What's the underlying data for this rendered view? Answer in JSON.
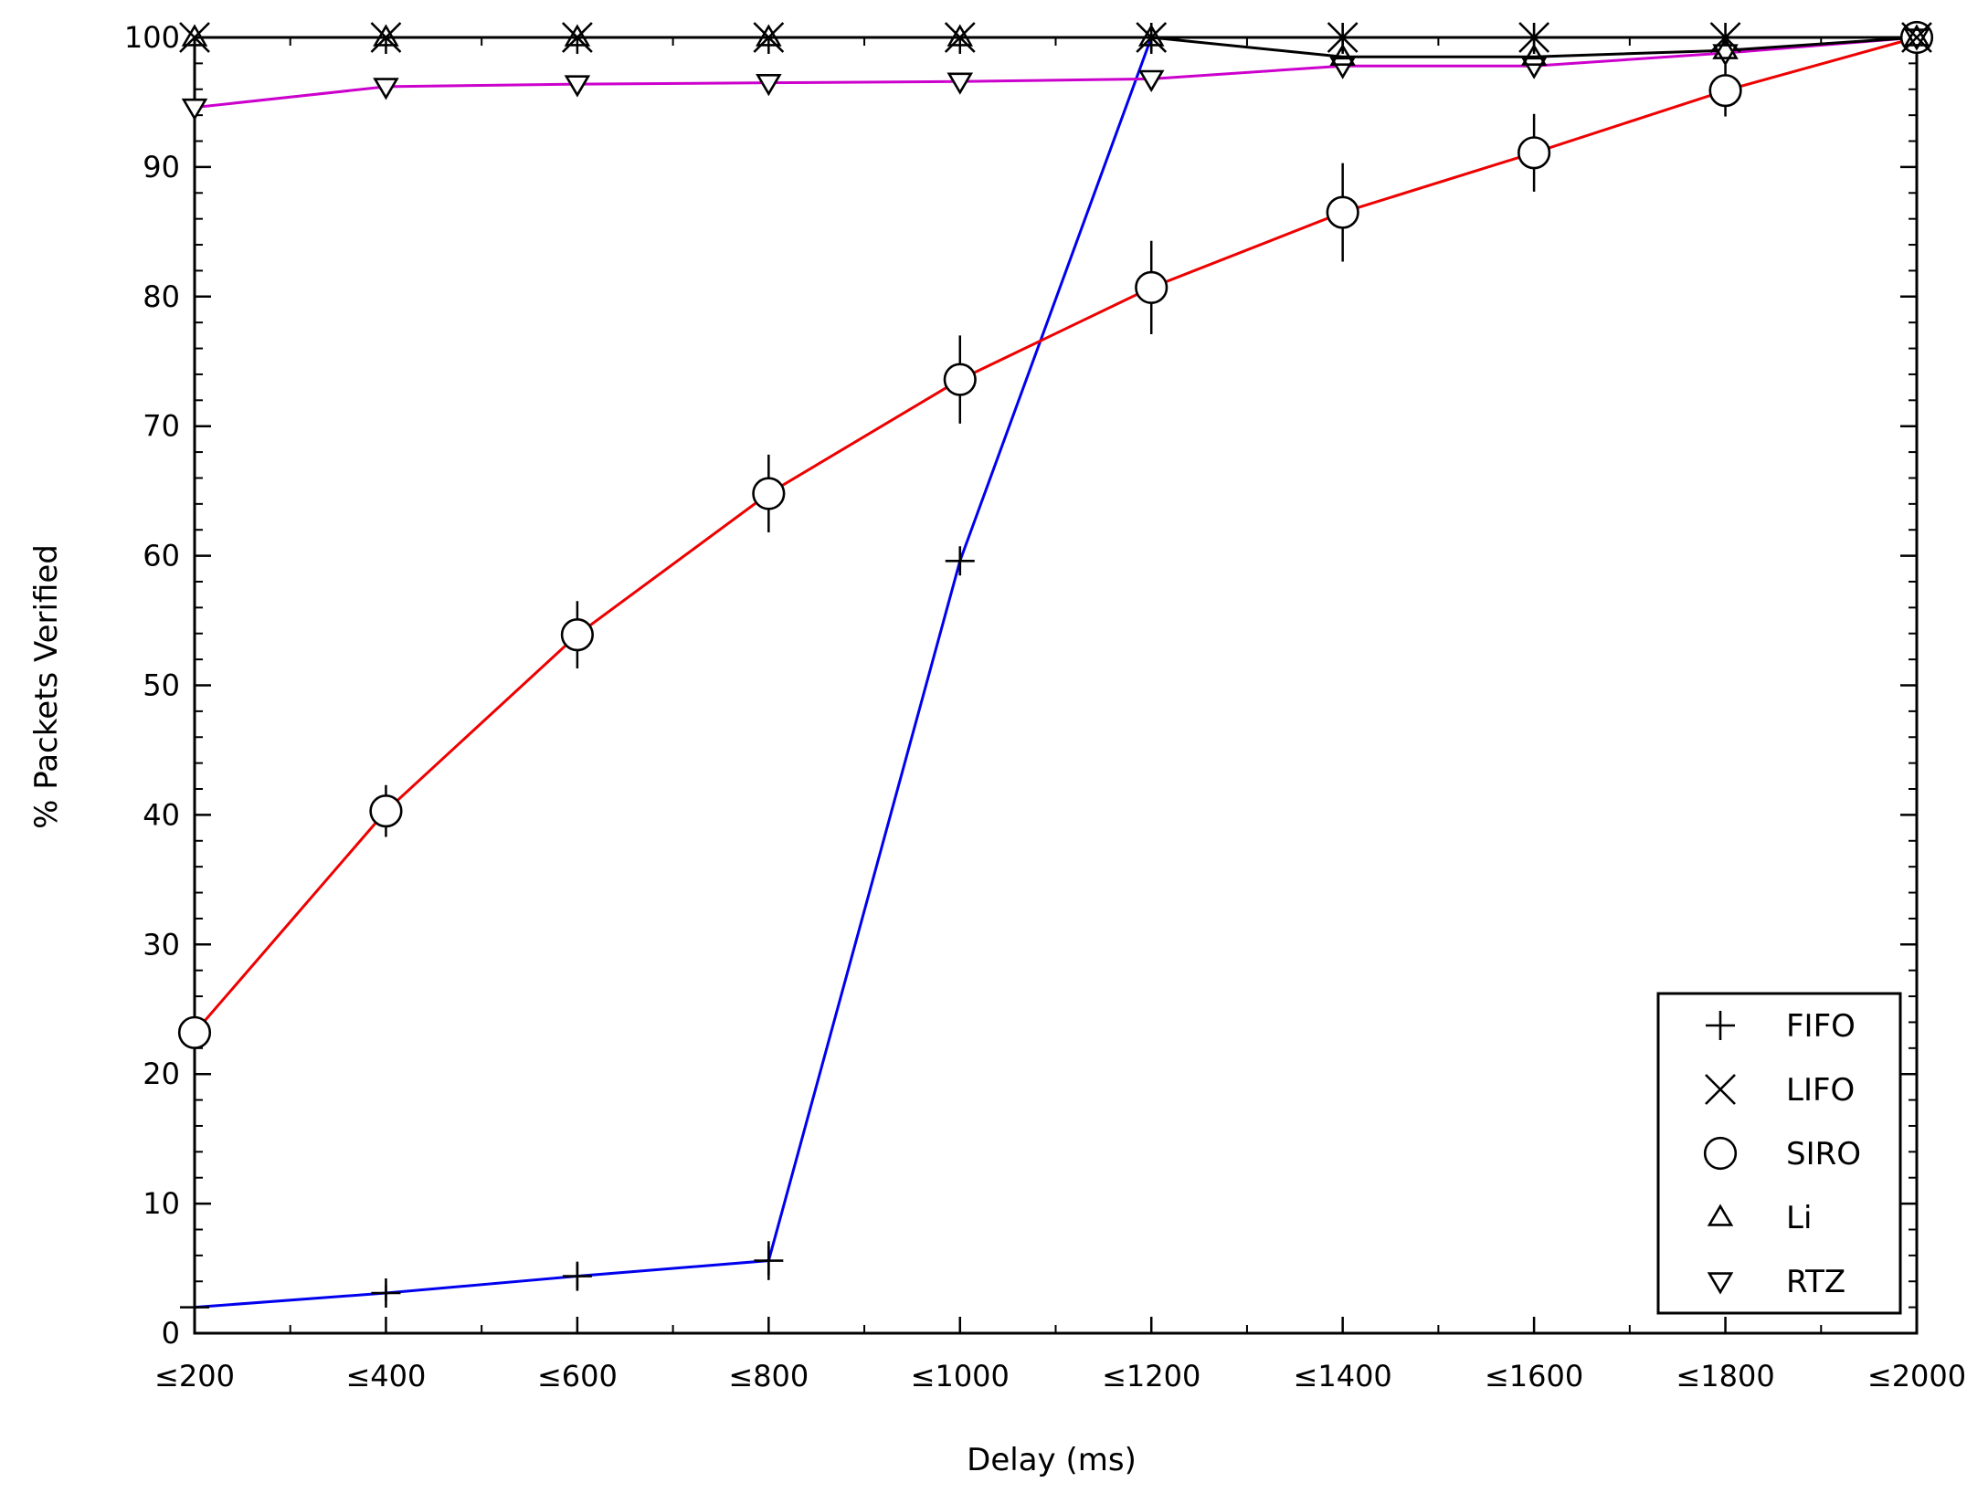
{
  "chart_data": {
    "type": "line",
    "xlabel": "Delay (ms)",
    "ylabel": "% Packets Verified",
    "categories": [
      "≤200",
      "≤400",
      "≤600",
      "≤800",
      "≤1000",
      "≤1200",
      "≤1400",
      "≤1600",
      "≤1800",
      "≤2000"
    ],
    "x": [
      200,
      400,
      600,
      800,
      1000,
      1200,
      1400,
      1600,
      1800,
      2000
    ],
    "xlim": [
      200,
      2000
    ],
    "ylim": [
      0,
      100
    ],
    "yticks": [
      0,
      10,
      20,
      30,
      40,
      50,
      60,
      70,
      80,
      90,
      100
    ],
    "grid": false,
    "legend_position": "bottom-right",
    "series": [
      {
        "name": "FIFO",
        "marker": "plus",
        "color": "#0000ee",
        "values": [
          2.0,
          3.1,
          4.4,
          5.6,
          59.6,
          100,
          100,
          100,
          100,
          100
        ],
        "errors": [
          0.3,
          0.6,
          1.0,
          1.5,
          0.5,
          0,
          0,
          0,
          0,
          0
        ]
      },
      {
        "name": "LIFO",
        "marker": "cross",
        "color": "#000000",
        "values": [
          100,
          100,
          100,
          100,
          100,
          100,
          100,
          100,
          100,
          100
        ],
        "errors": [
          0,
          0,
          0,
          0,
          0,
          0,
          0,
          0,
          0,
          0
        ]
      },
      {
        "name": "SIRO",
        "marker": "circle",
        "color": "#ee0000",
        "values": [
          23.2,
          40.3,
          53.9,
          64.8,
          73.6,
          80.7,
          86.5,
          91.1,
          95.9,
          100
        ],
        "errors": [
          0,
          2.0,
          2.6,
          3.0,
          3.4,
          3.6,
          3.8,
          3.0,
          2.0,
          0
        ]
      },
      {
        "name": "Li",
        "marker": "triangle-up",
        "color": "#000000",
        "values": [
          100,
          100,
          100,
          100,
          100,
          100,
          98.5,
          98.5,
          99.0,
          100
        ],
        "errors": [
          0,
          0,
          0,
          0,
          0,
          0,
          0,
          0,
          0,
          0
        ]
      },
      {
        "name": "RTZ",
        "marker": "triangle-down",
        "color": "#cc00cc",
        "values": [
          94.6,
          96.2,
          96.4,
          96.5,
          96.6,
          96.8,
          97.8,
          97.8,
          98.8,
          100
        ],
        "errors": [
          0,
          0,
          0,
          0,
          0,
          0,
          0,
          0,
          0,
          0
        ]
      }
    ]
  }
}
